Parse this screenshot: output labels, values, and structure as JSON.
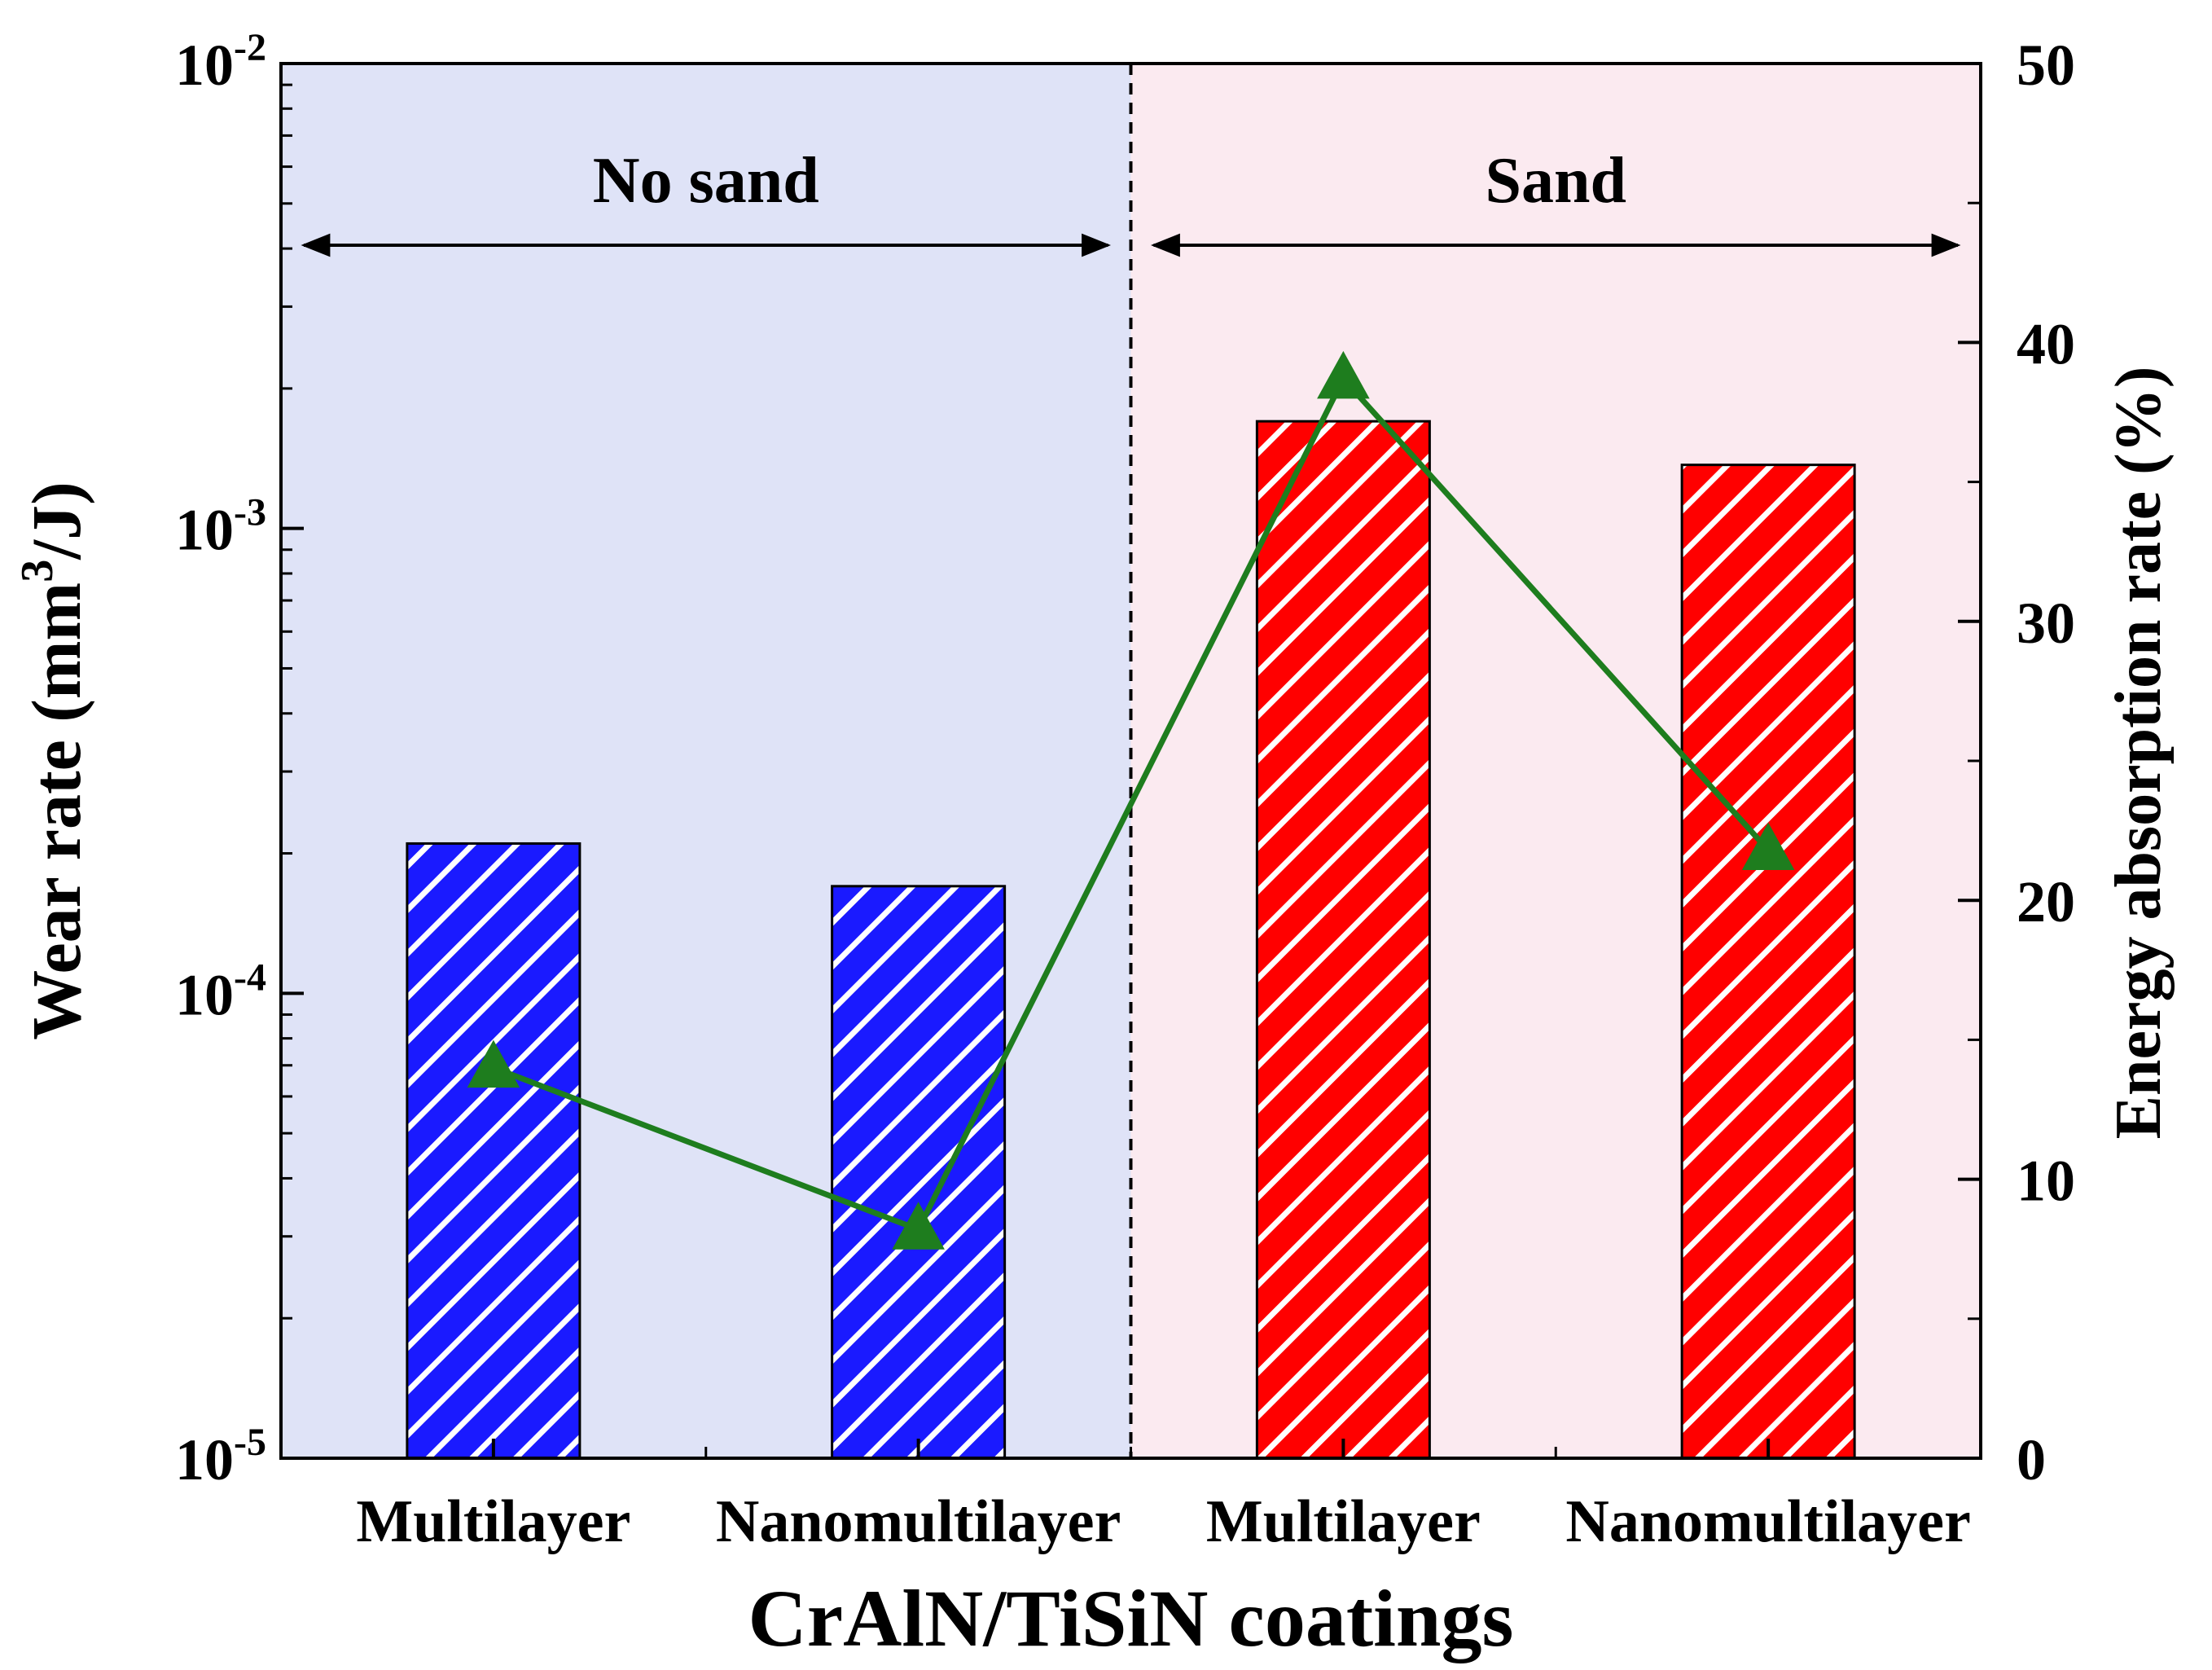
{
  "chart_data": {
    "type": "bar",
    "categories": [
      "Multilayer",
      "Nanomultilayer",
      "Multilayer",
      "Nanomultilayer"
    ],
    "xlabel": "CrAlN/TiSiN coatings",
    "ylabel_left": {
      "text": "Wear rate (mm",
      "sup": "3",
      "tail": "/J)"
    },
    "ylabel_right": "Energy absorption rate (%)",
    "y_left": {
      "scale": "log",
      "ylim": [
        1e-05,
        0.01
      ],
      "ticks": [
        {
          "value": 1e-05,
          "base": "10",
          "exp": "-5"
        },
        {
          "value": 0.0001,
          "base": "10",
          "exp": "-4"
        },
        {
          "value": 0.001,
          "base": "10",
          "exp": "-3"
        },
        {
          "value": 0.01,
          "base": "10",
          "exp": "-2"
        }
      ]
    },
    "y_right": {
      "scale": "linear",
      "ylim": [
        0,
        50
      ],
      "ticks": [
        "0",
        "10",
        "20",
        "30",
        "40",
        "50"
      ]
    },
    "regions": [
      {
        "label": "No sand",
        "categories": [
          0,
          1
        ],
        "background": "#dfe3f7"
      },
      {
        "label": "Sand",
        "categories": [
          2,
          3
        ],
        "background": "#fbeaf0"
      }
    ],
    "series": [
      {
        "kind": "bar",
        "axis": "left",
        "values": [
          0.00021,
          0.00017,
          0.0017,
          0.00137
        ],
        "colors": [
          "#1a1aff",
          "#1a1aff",
          "#ff0000",
          "#ff0000"
        ],
        "pattern": "diagonal-hatch"
      },
      {
        "kind": "line",
        "axis": "right",
        "marker": "triangle",
        "color": "#1e7d1e",
        "values": [
          14.0,
          8.2,
          38.7,
          21.8
        ]
      }
    ],
    "grid": false,
    "legend": "none"
  }
}
